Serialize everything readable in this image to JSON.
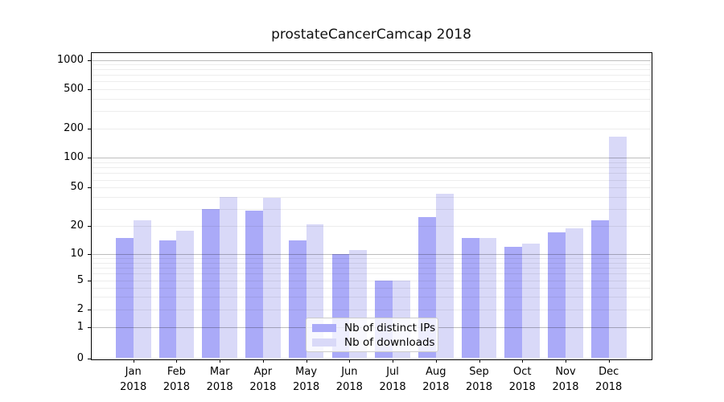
{
  "title": "prostateCancerCamcap 2018",
  "chart_data": {
    "type": "bar",
    "title": "prostateCancerCamcap 2018",
    "categories": [
      "Jan",
      "Feb",
      "Mar",
      "Apr",
      "May",
      "Jun",
      "Jul",
      "Aug",
      "Sep",
      "Oct",
      "Nov",
      "Dec"
    ],
    "category_year": "2018",
    "series": [
      {
        "name": "Nb of distinct IPs",
        "color": "#aaaaf8",
        "values": [
          15,
          14,
          30,
          29,
          14,
          10,
          5,
          25,
          15,
          12,
          17,
          23
        ]
      },
      {
        "name": "Nb of downloads",
        "color": "#d9d9f8",
        "values": [
          23,
          18,
          40,
          39,
          21,
          11,
          5,
          43,
          15,
          13,
          19,
          165
        ]
      }
    ],
    "y_ticks": [
      0,
      1,
      2,
      5,
      10,
      20,
      50,
      100,
      200,
      500,
      1000
    ],
    "yscale": "log",
    "ylim": [
      0,
      1200
    ],
    "grid": true,
    "legend_position": "lower center"
  },
  "legend": {
    "entries": [
      "Nb of distinct IPs",
      "Nb of downloads"
    ]
  }
}
